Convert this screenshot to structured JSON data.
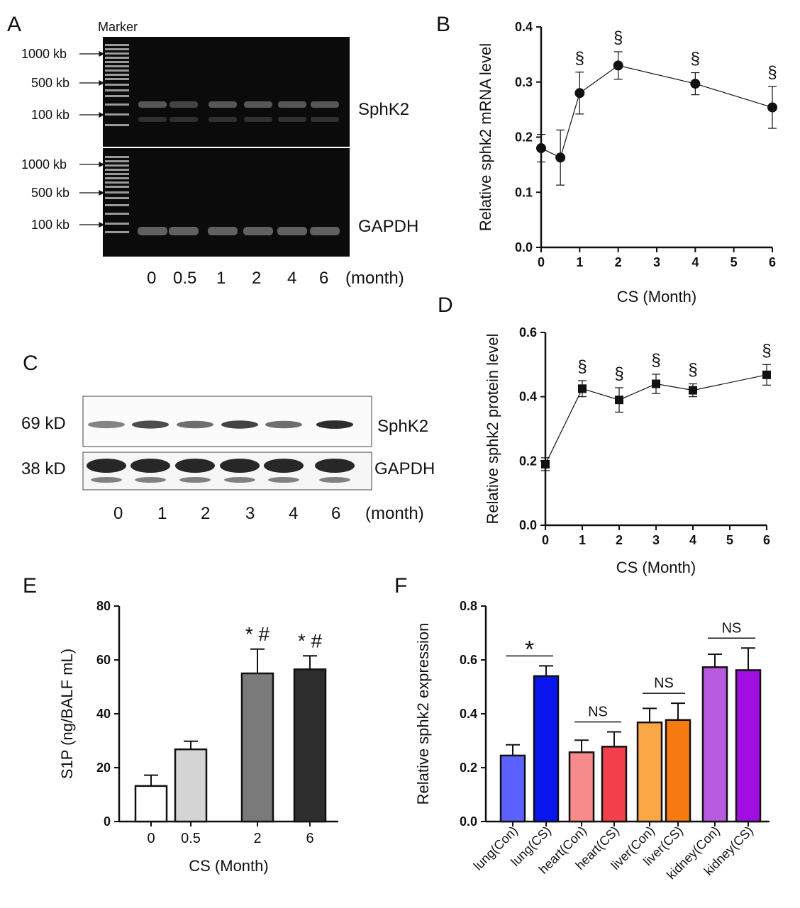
{
  "panels": [
    "A",
    "B",
    "C",
    "D",
    "E",
    "F"
  ],
  "panelA": {
    "marker_label": "Marker",
    "top_ladder": [
      "1000 kb",
      "500 kb",
      "100 kb"
    ],
    "bottom_ladder": [
      "1000 kb",
      "500 kb",
      "100 kb"
    ],
    "top_band": "SphK2",
    "bottom_band": "GAPDH",
    "lanes": [
      "0",
      "0.5",
      "1",
      "2",
      "4",
      "6"
    ],
    "lane_unit": "(month)"
  },
  "panelC": {
    "sizes": [
      "69 kD",
      "38 kD"
    ],
    "bands": [
      "SphK2",
      "GAPDH"
    ],
    "lanes": [
      "0",
      "1",
      "2",
      "3",
      "4",
      "6"
    ],
    "lane_unit": "(month)"
  },
  "chart_data": [
    {
      "id": "B",
      "type": "line",
      "x": [
        0,
        0.5,
        1,
        2,
        4,
        6
      ],
      "y": [
        0.18,
        0.163,
        0.28,
        0.33,
        0.297,
        0.254
      ],
      "error": [
        0.025,
        0.05,
        0.038,
        0.025,
        0.02,
        0.038
      ],
      "annotations": [
        "",
        "",
        "§",
        "§",
        "§",
        "§"
      ],
      "xlabel": "CS (Month)",
      "ylabel": "Relative sphk2 mRNA level",
      "xlim": [
        0,
        6
      ],
      "ylim": [
        0,
        0.4
      ],
      "xticks": [
        0,
        1,
        2,
        3,
        4,
        5,
        6
      ],
      "yticks": [
        0.0,
        0.1,
        0.2,
        0.3,
        0.4
      ],
      "marker": "circle"
    },
    {
      "id": "D",
      "type": "line",
      "x": [
        0,
        1,
        2,
        3,
        4,
        6
      ],
      "y": [
        0.19,
        0.425,
        0.39,
        0.44,
        0.42,
        0.468
      ],
      "error": [
        0.02,
        0.025,
        0.038,
        0.03,
        0.02,
        0.032
      ],
      "annotations": [
        "",
        "§",
        "§",
        "§",
        "§",
        "§"
      ],
      "xlabel": "CS (Month)",
      "ylabel": "Relative sphk2 protein level",
      "xlim": [
        0,
        6
      ],
      "ylim": [
        0,
        0.6
      ],
      "xticks": [
        0,
        1,
        2,
        3,
        4,
        5,
        6
      ],
      "yticks": [
        0.0,
        0.2,
        0.4,
        0.6
      ],
      "marker": "square"
    },
    {
      "id": "E",
      "type": "bar",
      "categories": [
        "0",
        "0.5",
        "2",
        "6"
      ],
      "values": [
        13.2,
        26.8,
        55,
        56.5
      ],
      "error": [
        4,
        3,
        9,
        5
      ],
      "colors": [
        "#ffffff",
        "#d4d4d4",
        "#7a7a7a",
        "#2e2e2e"
      ],
      "annotations": [
        "",
        "",
        "* #",
        "* #"
      ],
      "xlabel": "CS (Month)",
      "ylabel": "S1P (ng/BALF mL)",
      "ylim": [
        0,
        80
      ],
      "yticks": [
        0,
        20,
        40,
        60,
        80
      ]
    },
    {
      "id": "F",
      "type": "bar",
      "categories": [
        "lung(Con)",
        "lung(CS)",
        "heart(Con)",
        "heart(CS)",
        "liver(Con)",
        "liver(CS)",
        "kidney(Con)",
        "kidney(CS)"
      ],
      "values": [
        0.245,
        0.54,
        0.257,
        0.278,
        0.368,
        0.377,
        0.573,
        0.562
      ],
      "error": [
        0.04,
        0.038,
        0.045,
        0.055,
        0.052,
        0.062,
        0.048,
        0.082
      ],
      "colors": [
        "#5b61ff",
        "#0a14ee",
        "#f78a8a",
        "#f2414c",
        "#f9a845",
        "#f57a10",
        "#b95be0",
        "#a00fe0"
      ],
      "comparisons": [
        {
          "pair": [
            0,
            1
          ],
          "label": "*"
        },
        {
          "pair": [
            2,
            3
          ],
          "label": "NS"
        },
        {
          "pair": [
            4,
            5
          ],
          "label": "NS"
        },
        {
          "pair": [
            6,
            7
          ],
          "label": "NS"
        }
      ],
      "ylabel": "Relative sphk2 expression",
      "ylim": [
        0,
        0.8
      ],
      "yticks": [
        0.0,
        0.2,
        0.4,
        0.6,
        0.8
      ]
    }
  ]
}
